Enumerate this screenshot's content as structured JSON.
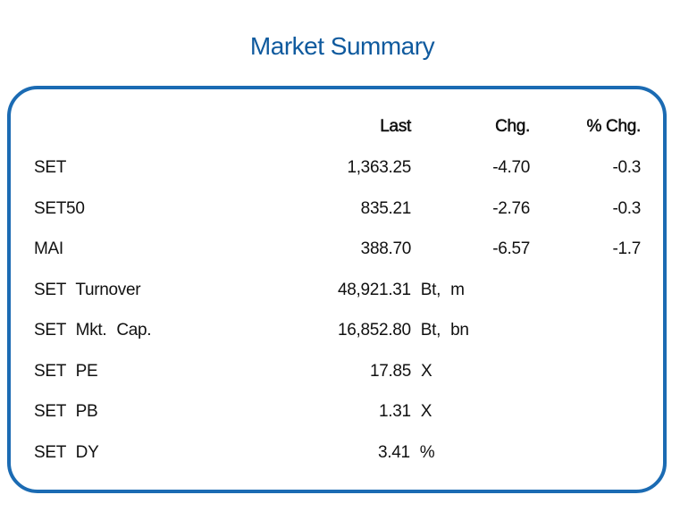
{
  "title": "Market Summary",
  "columns": {
    "last": "Last",
    "chg": "Chg.",
    "pct": "% Chg."
  },
  "indices": [
    {
      "name": "SET",
      "last": "1,363.25",
      "chg": "-4.70",
      "pct": "-0.3"
    },
    {
      "name": "SET50",
      "last": "835.21",
      "chg": "-2.76",
      "pct": "-0.3"
    },
    {
      "name": "MAI",
      "last": "388.70",
      "chg": "-6.57",
      "pct": "-1.7"
    }
  ],
  "stats": [
    {
      "label": "SET Turnover",
      "value": "48,921.31 Bt, m"
    },
    {
      "label": "SET Mkt. Cap.",
      "value": "16,852.80 Bt, bn"
    },
    {
      "label": "SET PE",
      "value": "17.85 X"
    },
    {
      "label": "SET PB",
      "value": "1.31 X"
    },
    {
      "label": "SET DY",
      "value": "3.41 %"
    }
  ]
}
